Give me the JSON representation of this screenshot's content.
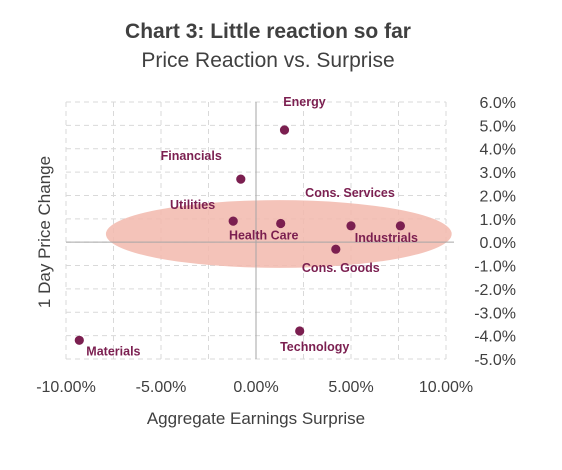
{
  "chart_data": {
    "type": "scatter",
    "title": "Chart 3: Little reaction so far",
    "subtitle": "Price Reaction vs. Surprise",
    "xlabel": "Aggregate Earnings Surprise",
    "ylabel": "1 Day Price Change",
    "xlim": [
      -10,
      10
    ],
    "ylim": [
      -5,
      6
    ],
    "x_ticks": [
      "-10.00%",
      "-5.00%",
      "0.00%",
      "5.00%",
      "10.00%"
    ],
    "y_ticks": [
      "6.0%",
      "5.0%",
      "4.0%",
      "3.0%",
      "2.0%",
      "1.0%",
      "0.0%",
      "-1.0%",
      "-2.0%",
      "-3.0%",
      "-4.0%",
      "-5.0%"
    ],
    "grid": true,
    "points": [
      {
        "label": "Energy",
        "x": 1.5,
        "y": 4.8
      },
      {
        "label": "Financials",
        "x": -0.8,
        "y": 2.7
      },
      {
        "label": "Cons. Services",
        "x": 5.0,
        "y": 0.7
      },
      {
        "label": "Utilities",
        "x": -1.2,
        "y": 0.9
      },
      {
        "label": "Health Care",
        "x": 1.3,
        "y": 0.8
      },
      {
        "label": "Industrials",
        "x": 7.6,
        "y": 0.7
      },
      {
        "label": "Cons. Goods",
        "x": 4.2,
        "y": -0.3
      },
      {
        "label": "Technology",
        "x": 2.3,
        "y": -3.8
      },
      {
        "label": "Materials",
        "x": -9.3,
        "y": -4.2
      }
    ],
    "colors": {
      "point": "#7b1f50",
      "label": "#7b1f50",
      "highlight": "#f2b8ad",
      "grid": "#d9d9d9",
      "axis": "#a6a6a6",
      "text": "#404040"
    }
  }
}
